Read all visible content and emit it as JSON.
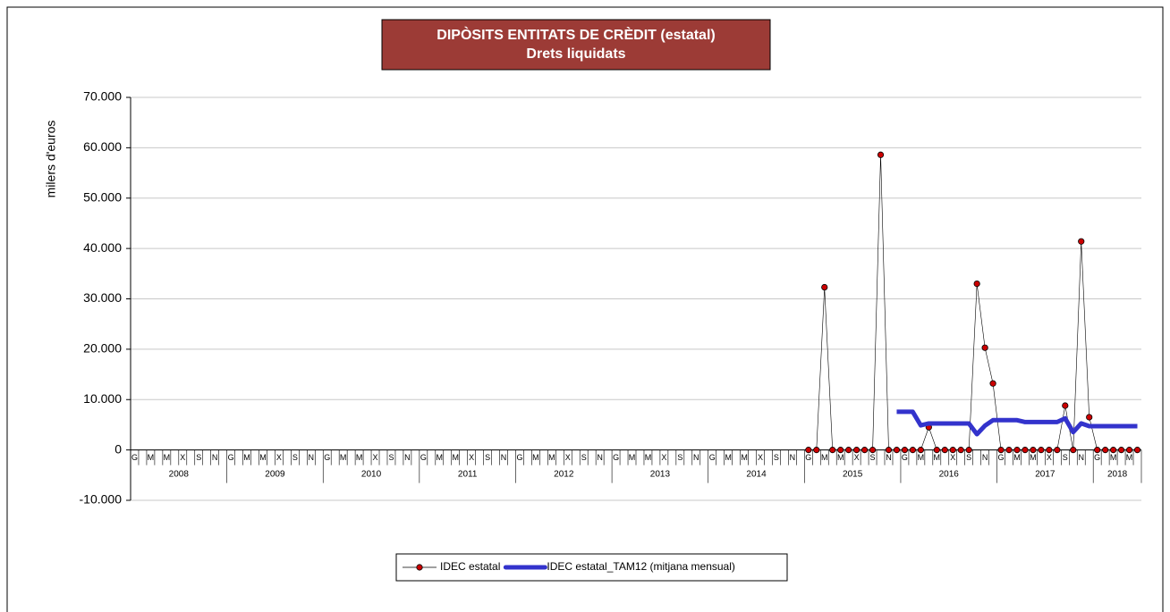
{
  "chart_data": {
    "type": "line",
    "title": "DIPÒSITS ENTITATS DE CRÈDIT (estatal)",
    "subtitle": "Drets liquidats",
    "y_label": "milers d'euros",
    "title_color": "#9c3b36",
    "categories": [
      "G",
      null,
      "M",
      null,
      "M",
      null,
      "X",
      null,
      "S",
      null,
      "N",
      null,
      "G",
      null,
      "M",
      null,
      "M",
      null,
      "X",
      null,
      "S",
      null,
      "N",
      null,
      "G",
      null,
      "M",
      null,
      "M",
      null,
      "X",
      null,
      "S",
      null,
      "N",
      null,
      "G",
      null,
      "M",
      null,
      "M",
      null,
      "X",
      null,
      "S",
      null,
      "N",
      null,
      "G",
      null,
      "M",
      null,
      "M",
      null,
      "X",
      null,
      "S",
      null,
      "N",
      null,
      "G",
      null,
      "M",
      null,
      "M",
      null,
      "X",
      null,
      "S",
      null,
      "N",
      null,
      "G",
      null,
      "M",
      null,
      "M",
      null,
      "X",
      null,
      "S",
      null,
      "N",
      null,
      "G",
      null,
      "M",
      null,
      "M",
      null,
      "X",
      null,
      "S",
      null,
      "N",
      null,
      "G",
      null,
      "M",
      null,
      "M",
      null,
      "X",
      null,
      "S",
      null,
      "N",
      null,
      "G",
      null,
      "M",
      null,
      "M",
      null,
      "X",
      null,
      "S",
      null,
      "N",
      null,
      "G",
      null,
      "M",
      null,
      "M",
      null
    ],
    "years": [
      "2008",
      "2009",
      "2010",
      "2011",
      "2012",
      "2013",
      "2014",
      "2015",
      "2016",
      "2017",
      "2018"
    ],
    "series": [
      {
        "name": "IDEC estatal",
        "color": "#000000",
        "marker_color": "#cc0000",
        "values": [
          null,
          null,
          null,
          null,
          null,
          null,
          null,
          null,
          null,
          null,
          null,
          null,
          null,
          null,
          null,
          null,
          null,
          null,
          null,
          null,
          null,
          null,
          null,
          null,
          null,
          null,
          null,
          null,
          null,
          null,
          null,
          null,
          null,
          null,
          null,
          null,
          null,
          null,
          null,
          null,
          null,
          null,
          null,
          null,
          null,
          null,
          null,
          null,
          null,
          null,
          null,
          null,
          null,
          null,
          null,
          null,
          null,
          null,
          null,
          null,
          null,
          null,
          null,
          null,
          null,
          null,
          null,
          null,
          null,
          null,
          null,
          null,
          null,
          null,
          null,
          null,
          null,
          null,
          null,
          null,
          null,
          null,
          null,
          null,
          0,
          0,
          32300,
          0,
          0,
          0,
          0,
          0,
          0,
          58600,
          0,
          0,
          0,
          0,
          0,
          4500,
          0,
          0,
          0,
          0,
          0,
          33000,
          20300,
          13200,
          0,
          0,
          0,
          0,
          0,
          0,
          0,
          0,
          8800,
          0,
          41400,
          6500,
          0,
          0,
          0,
          0,
          0,
          0
        ]
      },
      {
        "name": "IDEC estatal_TAM12 (mitjana mensual)",
        "color": "#3333cc",
        "values": [
          null,
          null,
          null,
          null,
          null,
          null,
          null,
          null,
          null,
          null,
          null,
          null,
          null,
          null,
          null,
          null,
          null,
          null,
          null,
          null,
          null,
          null,
          null,
          null,
          null,
          null,
          null,
          null,
          null,
          null,
          null,
          null,
          null,
          null,
          null,
          null,
          null,
          null,
          null,
          null,
          null,
          null,
          null,
          null,
          null,
          null,
          null,
          null,
          null,
          null,
          null,
          null,
          null,
          null,
          null,
          null,
          null,
          null,
          null,
          null,
          null,
          null,
          null,
          null,
          null,
          null,
          null,
          null,
          null,
          null,
          null,
          null,
          null,
          null,
          null,
          null,
          null,
          null,
          null,
          null,
          null,
          null,
          null,
          null,
          null,
          null,
          null,
          null,
          null,
          null,
          null,
          null,
          null,
          null,
          null,
          7575,
          7575,
          7575,
          4883,
          5258,
          5258,
          5258,
          5258,
          5258,
          5258,
          3125,
          4817,
          5917,
          5917,
          5917,
          5917,
          5542,
          5542,
          5542,
          5542,
          5542,
          6275,
          3525,
          5283,
          4725,
          4725,
          4725,
          4725,
          4725,
          4725,
          4725
        ]
      }
    ],
    "ylim": [
      -10000,
      70000
    ],
    "yticks": [
      {
        "value": -10000,
        "label": "-10.000"
      },
      0,
      {
        "value": 10000,
        "label": "10.000"
      },
      {
        "value": 20000,
        "label": "20.000"
      },
      {
        "value": 30000,
        "label": "30.000"
      },
      {
        "value": 40000,
        "label": "40.000"
      },
      {
        "value": 50000,
        "label": "50.000"
      },
      {
        "value": 60000,
        "label": "60.000"
      },
      {
        "value": 70000,
        "label": "70.000"
      }
    ],
    "grid": true,
    "legend": "bottom"
  }
}
